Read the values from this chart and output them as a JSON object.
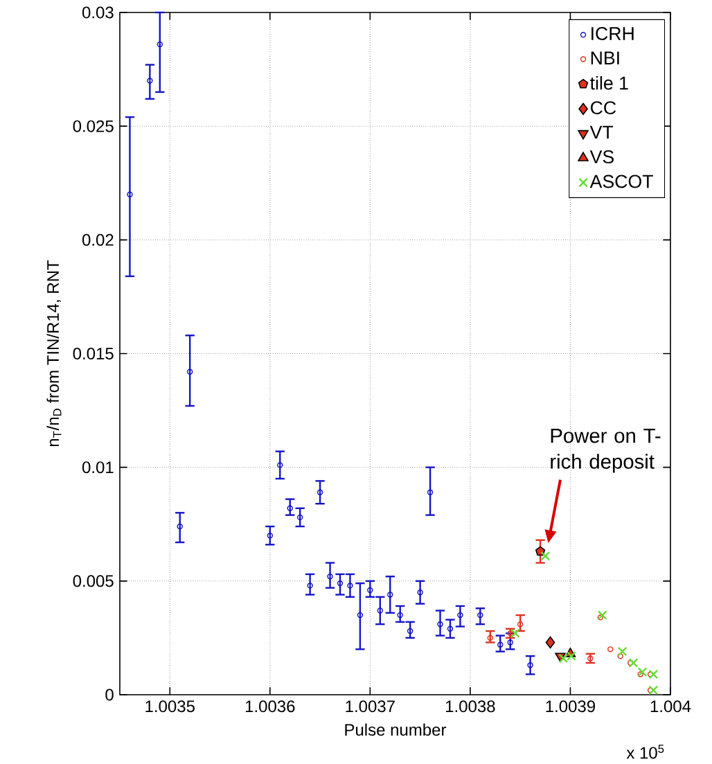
{
  "chart_data": {
    "type": "scatter",
    "xlabel": "Pulse number",
    "ylabel": "n$_{T}$/n$_{D}$ from TIN/R14, RNT",
    "xlim": [
      1.00345,
      1.004
    ],
    "ylim": [
      0,
      0.03
    ],
    "xticks": [
      1.0035,
      1.0036,
      1.0037,
      1.0038,
      1.0039,
      1.004
    ],
    "yticks": [
      0,
      0.005,
      0.01,
      0.015,
      0.02,
      0.025,
      0.03
    ],
    "grid": true,
    "legend": "top right",
    "annotations": [
      "Power on T-rich deposit",
      "x 10$^{5}$"
    ],
    "series": [
      {
        "name": "ICRH",
        "color": "#1414c8",
        "marker": "circle",
        "x": [
          1.00346,
          1.00348,
          1.00349,
          1.00351,
          1.00352,
          1.0036,
          1.00361,
          1.00362,
          1.00363,
          1.00364,
          1.00365,
          1.00366,
          1.00367,
          1.00368,
          1.00369,
          1.0037,
          1.00371,
          1.00372,
          1.00373,
          1.00374,
          1.00375,
          1.00376,
          1.00377,
          1.00378,
          1.00379,
          1.00381,
          1.00383,
          1.00384,
          1.00386
        ],
        "values": [
          0.022,
          0.027,
          0.0286,
          0.0074,
          0.0142,
          0.007,
          0.0101,
          0.0082,
          0.0078,
          0.0048,
          0.0089,
          0.0052,
          0.0049,
          0.0048,
          0.0035,
          0.0046,
          0.0037,
          0.0044,
          0.0035,
          0.0028,
          0.0045,
          0.0089,
          0.0031,
          0.0029,
          0.0035,
          0.0035,
          0.0022,
          0.0023,
          0.0013
        ],
        "errors": [
          [
            0.0184,
            0.0254
          ],
          [
            0.0262,
            0.0277
          ],
          [
            0.0265,
            0.03
          ],
          [
            0.0067,
            0.008
          ],
          [
            0.0127,
            0.0158
          ],
          [
            0.0066,
            0.0074
          ],
          [
            0.0095,
            0.0107
          ],
          [
            0.0079,
            0.0086
          ],
          [
            0.0074,
            0.0082
          ],
          [
            0.0044,
            0.0053
          ],
          [
            0.0084,
            0.0094
          ],
          [
            0.0047,
            0.0058
          ],
          [
            0.0044,
            0.0053
          ],
          [
            0.0043,
            0.0053
          ],
          [
            0.002,
            0.0049
          ],
          [
            0.0043,
            0.005
          ],
          [
            0.0031,
            0.0043
          ],
          [
            0.0036,
            0.0052
          ],
          [
            0.0032,
            0.0039
          ],
          [
            0.0025,
            0.0032
          ],
          [
            0.004,
            0.005
          ],
          [
            0.0079,
            0.01
          ],
          [
            0.0026,
            0.0037
          ],
          [
            0.0025,
            0.0033
          ],
          [
            0.003,
            0.0039
          ],
          [
            0.0031,
            0.0038
          ],
          [
            0.0019,
            0.0026
          ],
          [
            0.002,
            0.0027
          ],
          [
            0.0009,
            0.0017
          ]
        ]
      },
      {
        "name": "NBI",
        "color": "#e0301e",
        "marker": "circle",
        "x": [
          1.00382,
          1.00384,
          1.00385,
          1.00392,
          1.00393,
          1.00394,
          1.00395,
          1.00396,
          1.00397,
          1.00398,
          1.00398
        ],
        "values": [
          0.0025,
          0.0027,
          0.0031,
          0.0016,
          0.0034,
          0.002,
          0.0017,
          0.0014,
          0.0009,
          0.0009,
          0.0002
        ],
        "errors": [
          [
            0.0023,
            0.0028
          ],
          [
            0.0025,
            0.0029
          ],
          [
            0.0028,
            0.0035
          ],
          [
            0.0014,
            0.0018
          ],
          null,
          null,
          null,
          null,
          null,
          null,
          null
        ]
      },
      {
        "name": "tile 1",
        "color": "#e0301e",
        "marker": "star",
        "x": [
          1.00387
        ],
        "values": [
          0.0063
        ],
        "errors": [
          [
            0.0058,
            0.0068
          ]
        ]
      },
      {
        "name": "CC",
        "color": "#e0301e",
        "marker": "diamond",
        "x": [
          1.00388
        ],
        "values": [
          0.0023
        ]
      },
      {
        "name": "VT",
        "color": "#e0301e",
        "marker": "triangle_down",
        "x": [
          1.00389
        ],
        "values": [
          0.0017
        ]
      },
      {
        "name": "VS",
        "color": "#e0301e",
        "marker": "triangle",
        "x": [
          1.0039
        ],
        "values": [
          0.0018
        ]
      },
      {
        "name": "ASCOT",
        "color": "#66dd33",
        "marker": "cross",
        "x": [
          1.003845,
          1.003875,
          1.003893,
          1.003901,
          1.003932,
          1.003952,
          1.003963,
          1.003972,
          1.003983,
          1.003983
        ],
        "values": [
          0.0027,
          0.0061,
          0.0016,
          0.0017,
          0.0035,
          0.0019,
          0.0014,
          0.001,
          0.0009,
          0.0002
        ]
      }
    ]
  }
}
